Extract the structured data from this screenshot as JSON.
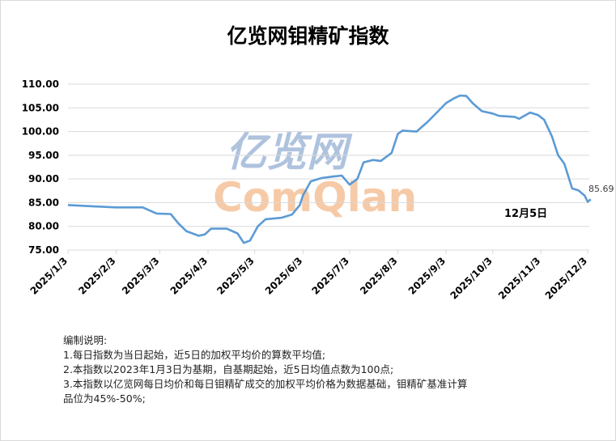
{
  "chart_data": {
    "type": "line",
    "title": "亿览网钼精矿指数",
    "xlabel": "",
    "ylabel": "",
    "ylim": [
      75,
      110
    ],
    "yticks": [
      "75.00",
      "80.00",
      "85.00",
      "90.00",
      "95.00",
      "100.00",
      "105.00",
      "110.00"
    ],
    "xticks": [
      "2025/1/3",
      "2025/2/3",
      "2025/3/3",
      "2025/4/3",
      "2025/5/3",
      "2025/6/3",
      "2025/7/3",
      "2025/8/3",
      "2025/9/3",
      "2025/10/3",
      "2025/11/3",
      "2025/12/3"
    ],
    "grid": true,
    "line_color": "#5b9bd5",
    "series": [
      {
        "x": [
          "2025-01-03",
          "2025-01-20",
          "2025-02-03",
          "2025-02-20",
          "2025-03-01",
          "2025-03-10",
          "2025-03-15",
          "2025-03-20",
          "2025-03-28",
          "2025-04-01",
          "2025-04-05",
          "2025-04-15",
          "2025-04-22",
          "2025-04-26",
          "2025-04-30",
          "2025-05-05",
          "2025-05-10",
          "2025-05-20",
          "2025-05-27",
          "2025-06-01",
          "2025-06-03",
          "2025-06-08",
          "2025-06-15",
          "2025-06-22",
          "2025-06-28",
          "2025-07-03",
          "2025-07-08",
          "2025-07-12",
          "2025-07-18",
          "2025-07-23",
          "2025-07-30",
          "2025-08-03",
          "2025-08-06",
          "2025-08-15",
          "2025-08-22",
          "2025-08-28",
          "2025-09-03",
          "2025-09-08",
          "2025-09-12",
          "2025-09-16",
          "2025-09-20",
          "2025-09-26",
          "2025-10-03",
          "2025-10-07",
          "2025-10-17",
          "2025-10-20",
          "2025-10-27",
          "2025-11-01",
          "2025-11-05",
          "2025-11-10",
          "2025-11-14",
          "2025-11-18",
          "2025-11-23",
          "2025-11-27",
          "2025-12-01",
          "2025-12-03",
          "2025-12-05"
        ],
        "values": [
          84.5,
          84.2,
          84.0,
          84.0,
          82.7,
          82.6,
          80.6,
          79.0,
          78.0,
          78.3,
          79.5,
          79.5,
          78.5,
          76.5,
          77.0,
          80.0,
          81.5,
          81.8,
          82.5,
          84.5,
          86.5,
          89.5,
          90.2,
          90.5,
          90.7,
          88.8,
          90.0,
          93.5,
          94.0,
          93.8,
          95.5,
          99.5,
          100.2,
          100.0,
          102.0,
          104.0,
          106.0,
          107.0,
          107.6,
          107.5,
          106.0,
          104.3,
          103.8,
          103.3,
          103.1,
          102.7,
          104.0,
          103.5,
          102.5,
          99.0,
          95.0,
          93.2,
          88.0,
          87.6,
          86.5,
          85.2,
          85.69
        ]
      }
    ],
    "annotations": {
      "last_value": "85.69",
      "date_label": "12月5日"
    }
  },
  "watermark": {
    "cn": "亿览网",
    "en": "ComQlan"
  },
  "notes": {
    "heading": "编制说明:",
    "lines": [
      "1.每日指数为当日起始，近5日的加权平均价的算数平均值;",
      "2.本指数以2023年1月3日为基期，自基期起始，近5日均值点数为100点;",
      "3.本指数以亿览网每日均价和每日钼精矿成交的加权平均价格为数据基础，钼精矿基准计算",
      "品位为45%-50%;"
    ]
  }
}
